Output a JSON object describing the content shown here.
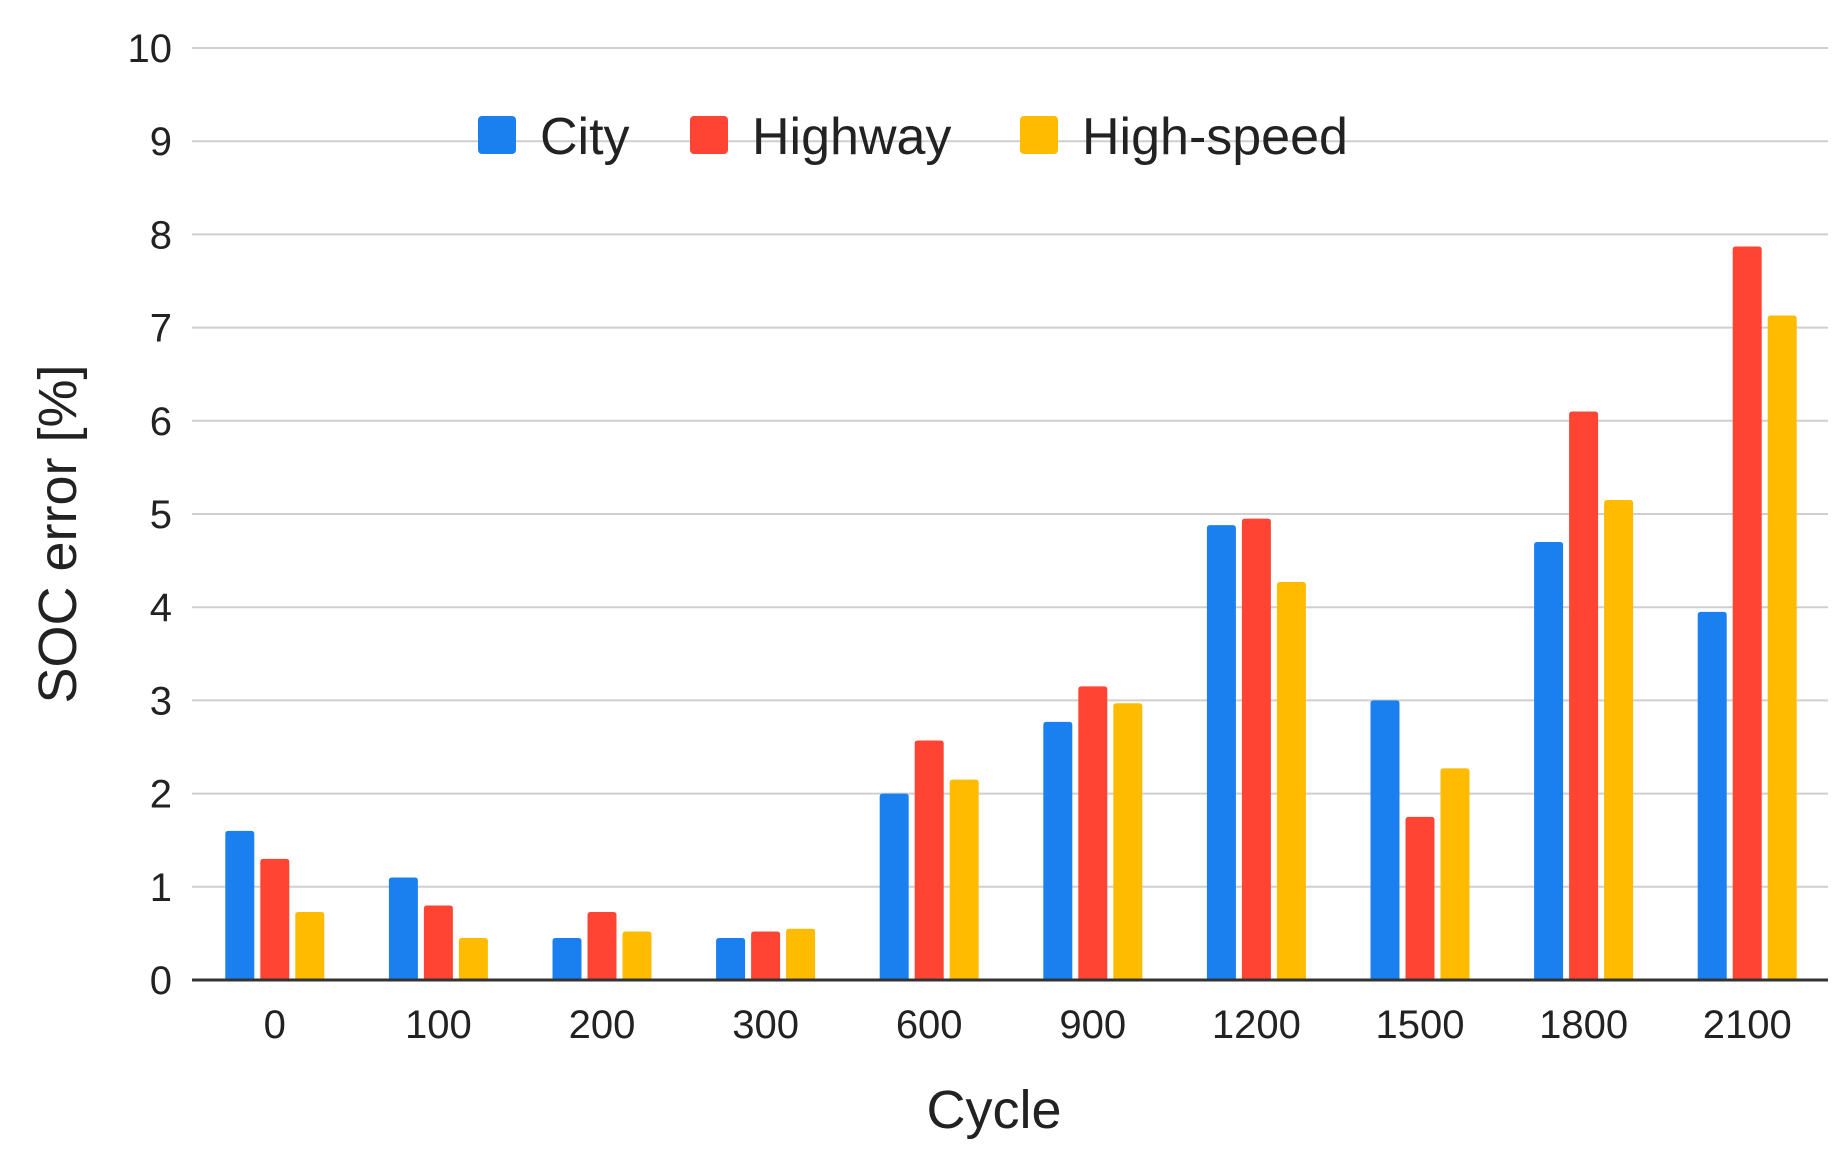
{
  "chart_data": {
    "type": "bar",
    "title": "",
    "xlabel": "Cycle",
    "ylabel": "SOC error [%]",
    "categories": [
      "0",
      "100",
      "200",
      "300",
      "600",
      "900",
      "1200",
      "1500",
      "1800",
      "2100"
    ],
    "series": [
      {
        "name": "City",
        "color": "#1a80f0",
        "values": [
          1.6,
          1.1,
          0.45,
          0.45,
          2.0,
          2.77,
          4.88,
          3.0,
          4.7,
          3.95
        ]
      },
      {
        "name": "Highway",
        "color": "#ff4433",
        "values": [
          1.3,
          0.8,
          0.73,
          0.52,
          2.57,
          3.15,
          4.95,
          1.75,
          6.1,
          7.87
        ]
      },
      {
        "name": "High-speed",
        "color": "#ffbb00",
        "values": [
          0.73,
          0.45,
          0.52,
          0.55,
          2.15,
          2.97,
          4.27,
          2.27,
          5.15,
          7.13
        ]
      }
    ],
    "ylim": [
      0,
      10
    ],
    "yticks": [
      "0",
      "1",
      "2",
      "3",
      "4",
      "5",
      "6",
      "7",
      "8",
      "9",
      "10"
    ],
    "grid": true,
    "legend": "top-center"
  }
}
